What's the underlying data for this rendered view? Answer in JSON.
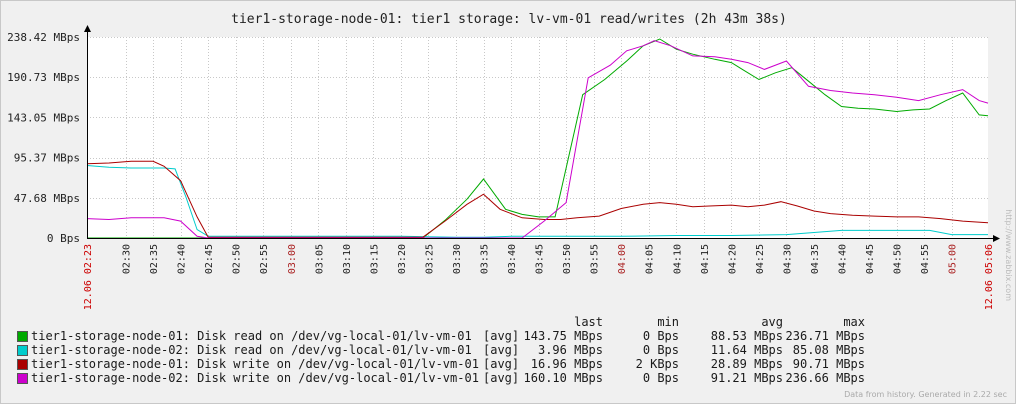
{
  "title": "tier1-storage-node-01: tier1 storage: lv-vm-01 read/writes  (2h 43m 38s)",
  "colors": {
    "background": "#f0f0f0",
    "plot_bg": "#ffffff",
    "grid": "#c8c8c8",
    "axis": "#000000",
    "date_label": "#cc0000",
    "hour_label": "#aa2222"
  },
  "legend": {
    "headers": {
      "last": "last",
      "min": "min",
      "avg": "avg",
      "max": "max"
    },
    "rows": [
      {
        "color": "#00aa00",
        "name": "tier1-storage-node-01: Disk read on /dev/vg-local-01/lv-vm-01",
        "fn": "[avg]",
        "last": "143.75 MBps",
        "min": "0 Bps",
        "avg": "88.53 MBps",
        "max": "236.71 MBps"
      },
      {
        "color": "#00cccc",
        "name": "tier1-storage-node-02: Disk read on /dev/vg-local-01/lv-vm-01",
        "fn": "[avg]",
        "last": "3.96 MBps",
        "min": "0 Bps",
        "avg": "11.64 MBps",
        "max": "85.08 MBps"
      },
      {
        "color": "#aa0000",
        "name": "tier1-storage-node-01: Disk write on /dev/vg-local-01/lv-vm-01",
        "fn": "[avg]",
        "last": "16.96 MBps",
        "min": "2 KBps",
        "avg": "28.89 MBps",
        "max": "90.71 MBps"
      },
      {
        "color": "#cc00cc",
        "name": "tier1-storage-node-02: Disk write on /dev/vg-local-01/lv-vm-01",
        "fn": "[avg]",
        "last": "160.10 MBps",
        "min": "0 Bps",
        "avg": "91.21 MBps",
        "max": "236.66 MBps"
      }
    ]
  },
  "footer": "Data from history. Generated in 2.22 sec",
  "watermark": "http://www.zabbix.com",
  "chart_data": {
    "type": "line",
    "title": "tier1-storage-node-01: tier1 storage: lv-vm-01 read/writes  (2h 43m 38s)",
    "y_unit": "MBps",
    "ylim": [
      0,
      238.42
    ],
    "y_ticks": [
      {
        "value": 0,
        "label": "0 Bps"
      },
      {
        "value": 47.68,
        "label": "47.68 MBps"
      },
      {
        "value": 95.37,
        "label": "95.37 MBps"
      },
      {
        "value": 143.05,
        "label": "143.05 MBps"
      },
      {
        "value": 190.73,
        "label": "190.73 MBps"
      },
      {
        "value": 238.42,
        "label": "238.42 MBps"
      }
    ],
    "xlim": [
      143,
      306.6
    ],
    "x_ticks": [
      {
        "t": 150,
        "label": "02:30",
        "hour": false
      },
      {
        "t": 155,
        "label": "02:35",
        "hour": false
      },
      {
        "t": 160,
        "label": "02:40",
        "hour": false
      },
      {
        "t": 165,
        "label": "02:45",
        "hour": false
      },
      {
        "t": 170,
        "label": "02:50",
        "hour": false
      },
      {
        "t": 175,
        "label": "02:55",
        "hour": false
      },
      {
        "t": 180,
        "label": "03:00",
        "hour": true
      },
      {
        "t": 185,
        "label": "03:05",
        "hour": false
      },
      {
        "t": 190,
        "label": "03:10",
        "hour": false
      },
      {
        "t": 195,
        "label": "03:15",
        "hour": false
      },
      {
        "t": 200,
        "label": "03:20",
        "hour": false
      },
      {
        "t": 205,
        "label": "03:25",
        "hour": false
      },
      {
        "t": 210,
        "label": "03:30",
        "hour": false
      },
      {
        "t": 215,
        "label": "03:35",
        "hour": false
      },
      {
        "t": 220,
        "label": "03:40",
        "hour": false
      },
      {
        "t": 225,
        "label": "03:45",
        "hour": false
      },
      {
        "t": 230,
        "label": "03:50",
        "hour": false
      },
      {
        "t": 235,
        "label": "03:55",
        "hour": false
      },
      {
        "t": 240,
        "label": "04:00",
        "hour": true
      },
      {
        "t": 245,
        "label": "04:05",
        "hour": false
      },
      {
        "t": 250,
        "label": "04:10",
        "hour": false
      },
      {
        "t": 255,
        "label": "04:15",
        "hour": false
      },
      {
        "t": 260,
        "label": "04:20",
        "hour": false
      },
      {
        "t": 265,
        "label": "04:25",
        "hour": false
      },
      {
        "t": 270,
        "label": "04:30",
        "hour": false
      },
      {
        "t": 275,
        "label": "04:35",
        "hour": false
      },
      {
        "t": 280,
        "label": "04:40",
        "hour": false
      },
      {
        "t": 285,
        "label": "04:45",
        "hour": false
      },
      {
        "t": 290,
        "label": "04:50",
        "hour": false
      },
      {
        "t": 295,
        "label": "04:55",
        "hour": false
      },
      {
        "t": 300,
        "label": "05:00",
        "hour": true
      }
    ],
    "x_edge_labels": [
      {
        "t": 143,
        "label": "12.06 02:23"
      },
      {
        "t": 306.6,
        "label": "12.06 05:06"
      }
    ],
    "series": [
      {
        "name": "tier1-storage-node-01: Disk read on /dev/vg-local-01/lv-vm-01",
        "color": "#00aa00",
        "points": [
          [
            143,
            0
          ],
          [
            147,
            0
          ],
          [
            151,
            0
          ],
          [
            155,
            0
          ],
          [
            159,
            0
          ],
          [
            163,
            0
          ],
          [
            165,
            0
          ],
          [
            200,
            0
          ],
          [
            204,
            0
          ],
          [
            208,
            21
          ],
          [
            212,
            46
          ],
          [
            215,
            70
          ],
          [
            219,
            34
          ],
          [
            222,
            28
          ],
          [
            225,
            25
          ],
          [
            228,
            25
          ],
          [
            233,
            170
          ],
          [
            237,
            188
          ],
          [
            241,
            210
          ],
          [
            244,
            228
          ],
          [
            247,
            236
          ],
          [
            250,
            224
          ],
          [
            253,
            218
          ],
          [
            257,
            212
          ],
          [
            260,
            208
          ],
          [
            262,
            200
          ],
          [
            265,
            188
          ],
          [
            268,
            196
          ],
          [
            271,
            202
          ],
          [
            274,
            186
          ],
          [
            277,
            170
          ],
          [
            280,
            156
          ],
          [
            283,
            154
          ],
          [
            286,
            153
          ],
          [
            290,
            150
          ],
          [
            293,
            152
          ],
          [
            296,
            153
          ],
          [
            299,
            163
          ],
          [
            302,
            172
          ],
          [
            305,
            146
          ],
          [
            306.6,
            145
          ]
        ]
      },
      {
        "name": "tier1-storage-node-02: Disk read on /dev/vg-local-01/lv-vm-01",
        "color": "#00cccc",
        "points": [
          [
            143,
            86
          ],
          [
            147,
            84
          ],
          [
            151,
            83
          ],
          [
            155,
            83
          ],
          [
            157,
            83
          ],
          [
            159,
            82
          ],
          [
            161,
            48
          ],
          [
            163,
            10
          ],
          [
            165,
            2
          ],
          [
            170,
            2
          ],
          [
            200,
            2
          ],
          [
            210,
            1
          ],
          [
            215,
            1
          ],
          [
            220,
            2
          ],
          [
            230,
            2
          ],
          [
            240,
            2
          ],
          [
            250,
            3
          ],
          [
            260,
            3
          ],
          [
            270,
            4
          ],
          [
            280,
            9
          ],
          [
            290,
            9
          ],
          [
            296,
            9
          ],
          [
            300,
            4
          ],
          [
            306.6,
            4
          ]
        ]
      },
      {
        "name": "tier1-storage-node-01: Disk write on /dev/vg-local-01/lv-vm-01",
        "color": "#aa0000",
        "points": [
          [
            143,
            88
          ],
          [
            147,
            89
          ],
          [
            151,
            91
          ],
          [
            155,
            91
          ],
          [
            157,
            85
          ],
          [
            160,
            68
          ],
          [
            163,
            25
          ],
          [
            165,
            1
          ],
          [
            200,
            1
          ],
          [
            204,
            1
          ],
          [
            208,
            20
          ],
          [
            212,
            40
          ],
          [
            215,
            52
          ],
          [
            218,
            34
          ],
          [
            222,
            24
          ],
          [
            226,
            22
          ],
          [
            229,
            22
          ],
          [
            232,
            24
          ],
          [
            236,
            26
          ],
          [
            240,
            35
          ],
          [
            244,
            40
          ],
          [
            247,
            42
          ],
          [
            250,
            40
          ],
          [
            253,
            37
          ],
          [
            256,
            38
          ],
          [
            260,
            39
          ],
          [
            263,
            37
          ],
          [
            266,
            39
          ],
          [
            269,
            43
          ],
          [
            272,
            38
          ],
          [
            275,
            32
          ],
          [
            278,
            29
          ],
          [
            282,
            27
          ],
          [
            286,
            26
          ],
          [
            290,
            25
          ],
          [
            294,
            25
          ],
          [
            298,
            23
          ],
          [
            302,
            20
          ],
          [
            306.6,
            18
          ]
        ]
      },
      {
        "name": "tier1-storage-node-02: Disk write on /dev/vg-local-01/lv-vm-01",
        "color": "#cc00cc",
        "points": [
          [
            143,
            23
          ],
          [
            147,
            22
          ],
          [
            151,
            24
          ],
          [
            155,
            24
          ],
          [
            157,
            24
          ],
          [
            160,
            20
          ],
          [
            163,
            2
          ],
          [
            165,
            0
          ],
          [
            200,
            0
          ],
          [
            215,
            0
          ],
          [
            219,
            0
          ],
          [
            222,
            0
          ],
          [
            226,
            20
          ],
          [
            230,
            42
          ],
          [
            234,
            190
          ],
          [
            238,
            205
          ],
          [
            241,
            222
          ],
          [
            244,
            228
          ],
          [
            246,
            234
          ],
          [
            249,
            228
          ],
          [
            253,
            216
          ],
          [
            257,
            215
          ],
          [
            260,
            212
          ],
          [
            263,
            208
          ],
          [
            266,
            200
          ],
          [
            270,
            210
          ],
          [
            274,
            180
          ],
          [
            278,
            175
          ],
          [
            282,
            172
          ],
          [
            286,
            170
          ],
          [
            290,
            167
          ],
          [
            294,
            163
          ],
          [
            298,
            170
          ],
          [
            302,
            176
          ],
          [
            305,
            163
          ],
          [
            306.6,
            160
          ]
        ]
      }
    ],
    "grid": true,
    "legend_position": "bottom"
  }
}
